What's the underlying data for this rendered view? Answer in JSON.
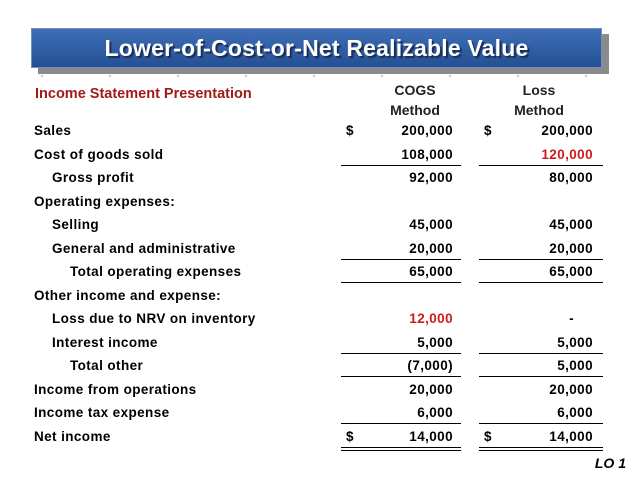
{
  "banner": {
    "title": "Lower-of-Cost-or-Net Realizable Value"
  },
  "section_title": "Income Statement Presentation",
  "columns": {
    "cogs": [
      "COGS",
      "Method"
    ],
    "loss": [
      "Loss",
      "Method"
    ]
  },
  "rows": [
    {
      "label": "Sales",
      "indent": 0,
      "cogs_dollar": "$",
      "cogs": "200,000",
      "loss_dollar": "$",
      "loss": "200,000"
    },
    {
      "label": "Cost of goods sold",
      "indent": 0,
      "cogs": "108,000",
      "loss": "120,000",
      "loss_color": "red",
      "underline": true
    },
    {
      "label": "Gross profit",
      "indent": 1,
      "cogs": "92,000",
      "loss": "80,000"
    },
    {
      "label": "Operating expenses:",
      "indent": 0,
      "cogs": "",
      "loss": ""
    },
    {
      "label": "Selling",
      "indent": 1,
      "cogs": "45,000",
      "loss": "45,000"
    },
    {
      "label": "General and administrative",
      "indent": 1,
      "cogs": "20,000",
      "loss": "20,000",
      "underline": true
    },
    {
      "label": "Total operating expenses",
      "indent": 2,
      "cogs": "65,000",
      "loss": "65,000",
      "underline": true
    },
    {
      "label": "Other income and expense:",
      "indent": 0,
      "cogs": "",
      "loss": ""
    },
    {
      "label": "Loss due to NRV on inventory",
      "indent": 1,
      "cogs": "12,000",
      "cogs_color": "red",
      "loss": "-"
    },
    {
      "label": "Interest income",
      "indent": 1,
      "cogs": "5,000",
      "loss": "5,000",
      "underline": true
    },
    {
      "label": "Total other",
      "indent": 2,
      "cogs": "(7,000)",
      "loss": "5,000",
      "underline": true
    },
    {
      "label": "Income from operations",
      "indent": 0,
      "cogs": "20,000",
      "loss": "20,000"
    },
    {
      "label": "Income tax expense",
      "indent": 0,
      "cogs": "6,000",
      "loss": "6,000",
      "underline": true
    },
    {
      "label": "Net income",
      "indent": 0,
      "cogs_dollar": "$",
      "cogs": "14,000",
      "loss_dollar": "$",
      "loss": "14,000",
      "double_underline": true
    }
  ],
  "footer": {
    "lo": "LO 1"
  },
  "colors": {
    "banner": "#2c5aa0",
    "section_title": "#a01a18",
    "highlight": "#d11a1a"
  }
}
